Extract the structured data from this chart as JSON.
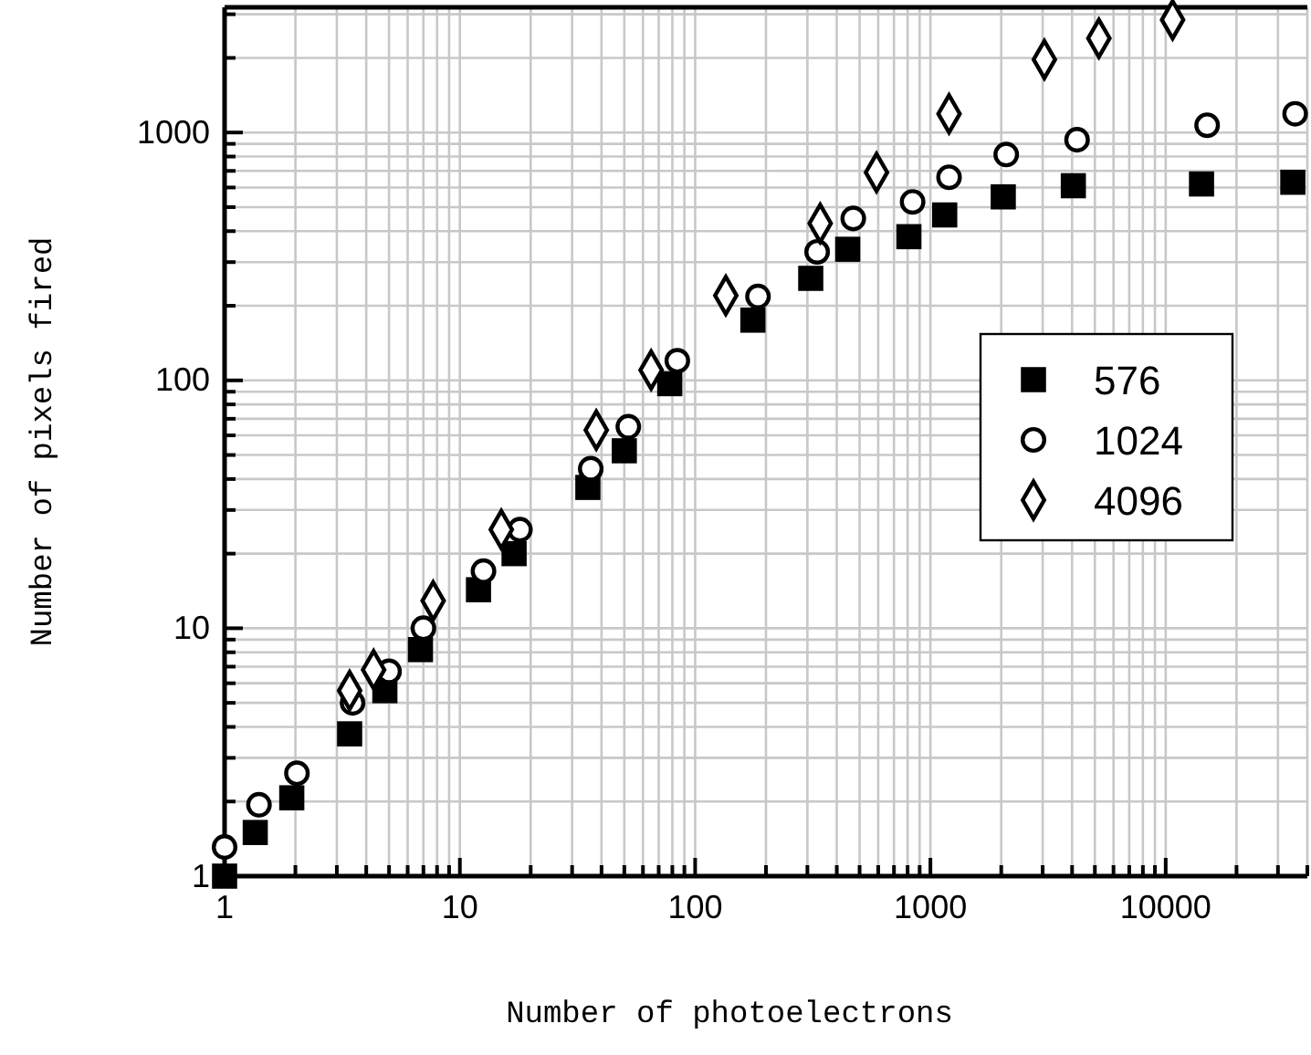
{
  "chart_data": {
    "type": "scatter",
    "xlabel": "Number of photoelectrons",
    "ylabel": "Number of pixels fired",
    "log": "xy",
    "grid": true,
    "legend": "right",
    "xlim": [
      1,
      40000
    ],
    "ylim": [
      1,
      3200
    ],
    "xticks": [
      1,
      {
        "value": 2,
        "label": null
      },
      {
        "value": 3,
        "label": null
      },
      {
        "value": 4,
        "label": null
      },
      {
        "value": 5,
        "label": null
      },
      {
        "value": 6,
        "label": null
      },
      {
        "value": 7,
        "label": null
      },
      {
        "value": 8,
        "label": null
      },
      {
        "value": 9,
        "label": null
      },
      10,
      {
        "value": 20,
        "label": null
      },
      {
        "value": 30,
        "label": null
      },
      {
        "value": 40,
        "label": null
      },
      {
        "value": 50,
        "label": null
      },
      {
        "value": 60,
        "label": null
      },
      {
        "value": 70,
        "label": null
      },
      {
        "value": 80,
        "label": null
      },
      {
        "value": 90,
        "label": null
      },
      100,
      {
        "value": 200,
        "label": null
      },
      {
        "value": 300,
        "label": null
      },
      {
        "value": 400,
        "label": null
      },
      {
        "value": 500,
        "label": null
      },
      {
        "value": 600,
        "label": null
      },
      {
        "value": 700,
        "label": null
      },
      {
        "value": 800,
        "label": null
      },
      {
        "value": 900,
        "label": null
      },
      1000,
      {
        "value": 2000,
        "label": null
      },
      {
        "value": 3000,
        "label": null
      },
      {
        "value": 4000,
        "label": null
      },
      {
        "value": 5000,
        "label": null
      },
      {
        "value": 6000,
        "label": null
      },
      {
        "value": 7000,
        "label": null
      },
      {
        "value": 8000,
        "label": null
      },
      {
        "value": 9000,
        "label": null
      },
      10000,
      {
        "value": 20000,
        "label": null
      },
      {
        "value": 30000,
        "label": null
      },
      {
        "value": 40000,
        "label": null
      }
    ],
    "yticks": [
      1,
      {
        "value": 2,
        "label": null
      },
      {
        "value": 3,
        "label": null
      },
      {
        "value": 4,
        "label": null
      },
      {
        "value": 5,
        "label": null
      },
      {
        "value": 6,
        "label": null
      },
      {
        "value": 7,
        "label": null
      },
      {
        "value": 8,
        "label": null
      },
      {
        "value": 9,
        "label": null
      },
      10,
      {
        "value": 20,
        "label": null
      },
      {
        "value": 30,
        "label": null
      },
      {
        "value": 40,
        "label": null
      },
      {
        "value": 50,
        "label": null
      },
      {
        "value": 60,
        "label": null
      },
      {
        "value": 70,
        "label": null
      },
      {
        "value": 80,
        "label": null
      },
      {
        "value": 90,
        "label": null
      },
      100,
      {
        "value": 200,
        "label": null
      },
      {
        "value": 300,
        "label": null
      },
      {
        "value": 400,
        "label": null
      },
      {
        "value": 500,
        "label": null
      },
      {
        "value": 600,
        "label": null
      },
      {
        "value": 700,
        "label": null
      },
      {
        "value": 800,
        "label": null
      },
      {
        "value": 900,
        "label": null
      },
      1000,
      {
        "value": 2000,
        "label": null
      },
      {
        "value": 3000,
        "label": null
      }
    ],
    "series": [
      {
        "name": "576",
        "color": "#000000",
        "marker": "square",
        "x": [
          1,
          1.35,
          1.93,
          3.4,
          4.8,
          6.8,
          12,
          17,
          35,
          50,
          78,
          176,
          310,
          445,
          810,
          1150,
          2040,
          4050,
          14200,
          34700
        ],
        "values": [
          1,
          1.5,
          2.07,
          3.75,
          5.6,
          8.2,
          14.3,
          20,
          37,
          52,
          97,
          175,
          258,
          338,
          380,
          465,
          550,
          610,
          620,
          630
        ]
      },
      {
        "name": "1024",
        "color": "#000000",
        "marker": "circle",
        "x": [
          1,
          1.4,
          2.03,
          3.5,
          5,
          7,
          12.6,
          18,
          36,
          52,
          84,
          185,
          330,
          470,
          840,
          1200,
          2100,
          4200,
          15000,
          35500
        ],
        "values": [
          1.31,
          1.94,
          2.6,
          5,
          6.7,
          10,
          17,
          25,
          44,
          65,
          120,
          218,
          330,
          450,
          525,
          660,
          815,
          935,
          1070,
          1190
        ]
      },
      {
        "name": "4096",
        "color": "#000000",
        "marker": "diamond",
        "x": [
          3.4,
          4.3,
          7.7,
          15,
          38,
          65,
          135,
          340,
          590,
          1200,
          3050,
          5200,
          10700
        ],
        "values": [
          5.6,
          6.8,
          12.9,
          25,
          63,
          110,
          220,
          430,
          690,
          1190,
          1970,
          2400,
          2850
        ]
      }
    ]
  }
}
